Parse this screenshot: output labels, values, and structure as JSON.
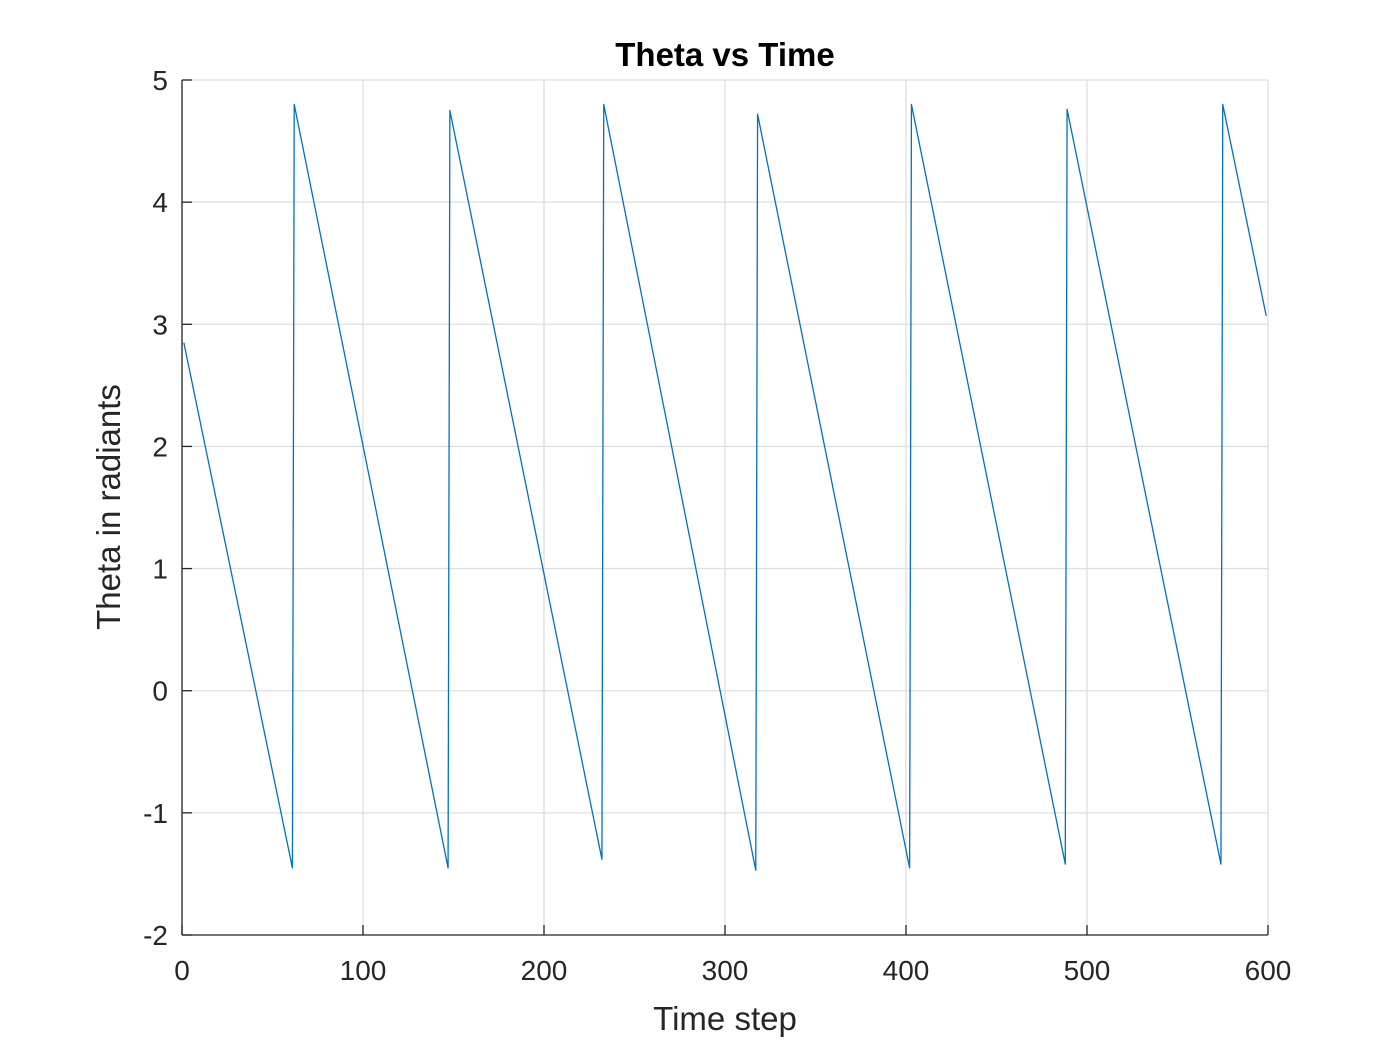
{
  "chart_data": {
    "type": "line",
    "title": "Theta vs Time",
    "xlabel": "Time step",
    "ylabel": "Theta in radiants",
    "xlim": [
      0,
      600
    ],
    "ylim": [
      -2,
      5
    ],
    "xticks": [
      "0",
      "100",
      "200",
      "300",
      "400",
      "500",
      "600"
    ],
    "yticks": [
      "-2",
      "-1",
      "0",
      "1",
      "2",
      "3",
      "4",
      "5"
    ],
    "grid": true,
    "legend": "none",
    "line_color": "#0072BD",
    "series": [
      {
        "x": [
          1,
          61,
          62,
          147,
          148,
          232,
          233,
          317,
          318,
          402,
          403,
          488,
          489,
          574,
          575,
          599
        ],
        "y": [
          2.85,
          -1.45,
          4.8,
          -1.45,
          4.75,
          -1.38,
          4.8,
          -1.47,
          4.72,
          -1.45,
          4.8,
          -1.42,
          4.76,
          -1.42,
          4.8,
          3.07
        ]
      }
    ]
  }
}
